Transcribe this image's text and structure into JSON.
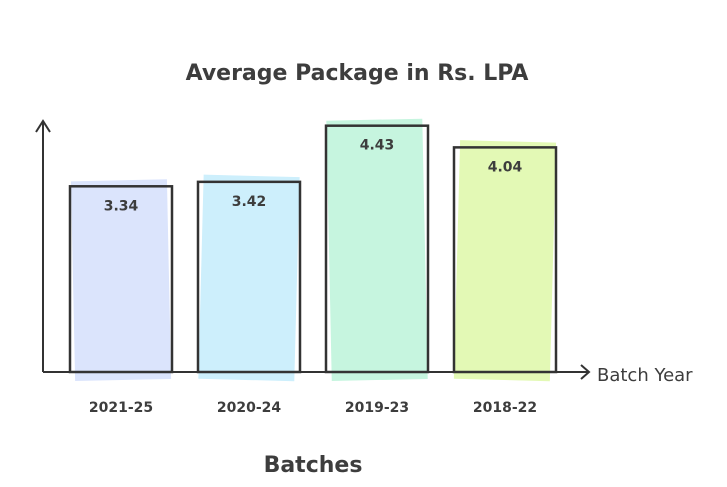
{
  "chart_data": {
    "type": "bar",
    "title": "Average Package in Rs. LPA",
    "xlabel": "Batches",
    "x_axis_arrow_label": "Batch Year",
    "ylabel": "",
    "categories": [
      "2021-25",
      "2020-24",
      "2019-23",
      "2018-22"
    ],
    "values": [
      3.34,
      3.42,
      4.43,
      4.04
    ],
    "value_labels": [
      "3.34",
      "3.42",
      "4.43",
      "4.04"
    ],
    "colors": [
      "#dbe4fc",
      "#cdeffc",
      "#c6f5df",
      "#e3f9b5"
    ],
    "ylim": [
      0,
      4.5
    ],
    "grid": false,
    "legend": "none",
    "style": "hand-drawn"
  }
}
